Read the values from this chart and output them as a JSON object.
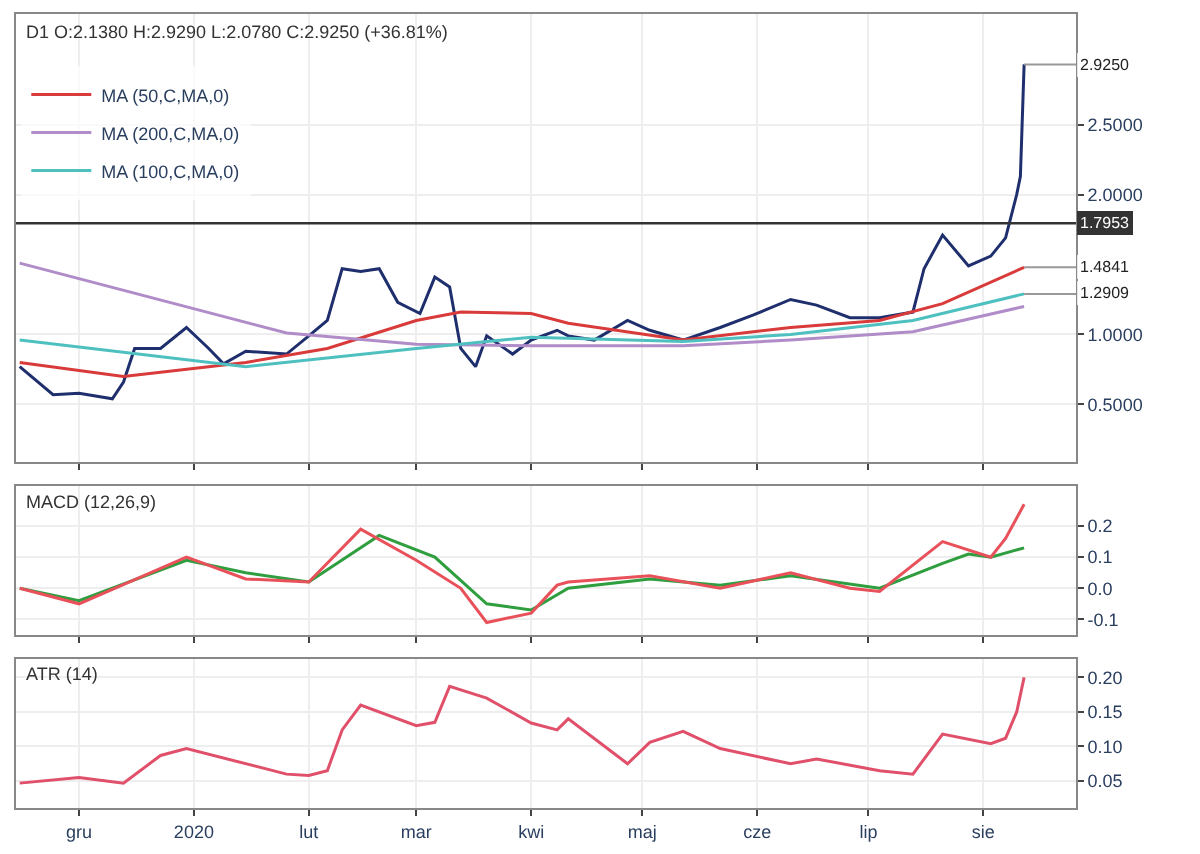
{
  "chart_data": [
    {
      "type": "line",
      "title": "D1 O:2.1380 H:2.9290 L:2.0780 C:2.9250 (+36.81%)",
      "legend": "top left",
      "grid": true,
      "tick_labels": "y",
      "xlim": [
        "2019-11-14",
        "2020-08-26"
      ],
      "xticks": [
        {
          "value": "2019-12-01",
          "label": null
        },
        {
          "value": "2020-01-01",
          "label": null
        },
        {
          "value": "2020-02-01",
          "label": null
        },
        {
          "value": "2020-03-01",
          "label": null
        },
        {
          "value": "2020-04-01",
          "label": null
        },
        {
          "value": "2020-05-01",
          "label": null
        },
        {
          "value": "2020-06-01",
          "label": null
        },
        {
          "value": "2020-07-01",
          "label": null
        },
        {
          "value": "2020-08-01",
          "label": null
        }
      ],
      "ylim": [
        0.09,
        3.29
      ],
      "yticks": [
        {
          "value": 0.5,
          "label": "0.5000"
        },
        {
          "value": 1.0,
          "label": "1.0000"
        },
        {
          "value": 2.0,
          "label": "2.0000"
        },
        {
          "value": 2.5,
          "label": "2.5000"
        }
      ],
      "ref_lines": [
        {
          "axis": "y",
          "value": 1.7953,
          "label": "1.7953",
          "color": "#333333"
        }
      ],
      "annotations": [
        {
          "text": "2.9250",
          "x": "2020-08-12",
          "y": 2.93
        },
        {
          "text": "1.4841",
          "x": "2020-08-12",
          "y": 1.48
        },
        {
          "text": "1.2909",
          "x": "2020-08-12",
          "y": 1.29
        }
      ],
      "series": [
        {
          "color": "#1f2f6e",
          "x": [
            "2019-11-15",
            "2019-11-24",
            "2019-12-01",
            "2019-12-10",
            "2019-12-13",
            "2019-12-16",
            "2019-12-23",
            "2019-12-30",
            "2020-01-05",
            "2020-01-09",
            "2020-01-15",
            "2020-01-26",
            "2020-02-01",
            "2020-02-06",
            "2020-02-10",
            "2020-02-15",
            "2020-02-20",
            "2020-02-25",
            "2020-03-02",
            "2020-03-06",
            "2020-03-10",
            "2020-03-13",
            "2020-03-17",
            "2020-03-20",
            "2020-03-27",
            "2020-04-01",
            "2020-04-08",
            "2020-04-11",
            "2020-04-18",
            "2020-04-27",
            "2020-05-03",
            "2020-05-12",
            "2020-05-22",
            "2020-05-31",
            "2020-06-10",
            "2020-06-17",
            "2020-06-26",
            "2020-07-04",
            "2020-07-13",
            "2020-07-16",
            "2020-07-21",
            "2020-07-28",
            "2020-08-03",
            "2020-08-07",
            "2020-08-10",
            "2020-08-11",
            "2020-08-12"
          ],
          "values": [
            0.77,
            0.57,
            0.58,
            0.54,
            0.66,
            0.9,
            0.9,
            1.05,
            0.9,
            0.79,
            0.88,
            0.86,
            0.99,
            1.1,
            1.47,
            1.45,
            1.47,
            1.23,
            1.15,
            1.41,
            1.34,
            0.9,
            0.77,
            0.99,
            0.86,
            0.96,
            1.03,
            0.99,
            0.96,
            1.1,
            1.03,
            0.96,
            1.05,
            1.14,
            1.25,
            1.21,
            1.12,
            1.12,
            1.16,
            1.47,
            1.71,
            1.49,
            1.56,
            1.69,
            2.0,
            2.13,
            2.93
          ]
        },
        {
          "name": "MA (50,C,MA,0)",
          "color": "#d93a3a",
          "x": [
            "2019-11-15",
            "2019-12-13",
            "2020-01-15",
            "2020-02-06",
            "2020-03-01",
            "2020-03-13",
            "2020-04-01",
            "2020-04-11",
            "2020-05-12",
            "2020-06-10",
            "2020-07-04",
            "2020-07-21",
            "2020-08-12"
          ],
          "values": [
            0.8,
            0.7,
            0.8,
            0.9,
            1.1,
            1.16,
            1.15,
            1.08,
            0.96,
            1.05,
            1.1,
            1.22,
            1.48
          ]
        },
        {
          "name": "MA (200,C,MA,0)",
          "color": "#b08cc8",
          "x": [
            "2019-11-15",
            "2020-01-26",
            "2020-03-01",
            "2020-04-01",
            "2020-05-12",
            "2020-06-10",
            "2020-07-13",
            "2020-08-12"
          ],
          "values": [
            1.51,
            1.01,
            0.93,
            0.92,
            0.92,
            0.96,
            1.02,
            1.2
          ]
        },
        {
          "name": "MA (100,C,MA,0)",
          "color": "#4fc0c0",
          "x": [
            "2019-11-15",
            "2020-01-15",
            "2020-03-01",
            "2020-04-01",
            "2020-05-12",
            "2020-06-10",
            "2020-07-13",
            "2020-08-12"
          ],
          "values": [
            0.96,
            0.77,
            0.9,
            0.98,
            0.95,
            1.0,
            1.1,
            1.29
          ]
        }
      ]
    },
    {
      "type": "line",
      "title": "MACD (12,26,9)",
      "grid": true,
      "tick_labels": "y",
      "xlim": [
        "2019-11-14",
        "2020-08-26"
      ],
      "xticks": [
        {
          "value": "2019-12-01",
          "label": null
        },
        {
          "value": "2020-01-01",
          "label": null
        },
        {
          "value": "2020-02-01",
          "label": null
        },
        {
          "value": "2020-03-01",
          "label": null
        },
        {
          "value": "2020-04-01",
          "label": null
        },
        {
          "value": "2020-05-01",
          "label": null
        },
        {
          "value": "2020-06-01",
          "label": null
        },
        {
          "value": "2020-07-01",
          "label": null
        },
        {
          "value": "2020-08-01",
          "label": null
        }
      ],
      "ylim": [
        -0.15,
        0.33
      ],
      "yticks": [
        {
          "value": -0.1,
          "label": "-0.1"
        },
        {
          "value": 0.0,
          "label": "0.0"
        },
        {
          "value": 0.1,
          "label": "0.1"
        },
        {
          "value": 0.2,
          "label": "0.2"
        }
      ],
      "series": [
        {
          "color": "#2e9e3e",
          "x": [
            "2019-11-15",
            "2019-12-01",
            "2019-12-30",
            "2020-01-15",
            "2020-02-01",
            "2020-02-20",
            "2020-03-06",
            "2020-03-20",
            "2020-04-01",
            "2020-04-11",
            "2020-05-03",
            "2020-05-22",
            "2020-06-10",
            "2020-07-04",
            "2020-07-21",
            "2020-07-28",
            "2020-08-03",
            "2020-08-12"
          ],
          "values": [
            0.0,
            -0.04,
            0.09,
            0.05,
            0.02,
            0.17,
            0.1,
            -0.05,
            -0.07,
            0.0,
            0.03,
            0.01,
            0.04,
            0.0,
            0.08,
            0.11,
            0.1,
            0.13
          ]
        },
        {
          "color": "#e8505a",
          "x": [
            "2019-11-15",
            "2019-12-01",
            "2019-12-30",
            "2020-01-15",
            "2020-02-01",
            "2020-02-15",
            "2020-03-01",
            "2020-03-13",
            "2020-03-20",
            "2020-04-01",
            "2020-04-08",
            "2020-04-11",
            "2020-05-03",
            "2020-05-22",
            "2020-06-10",
            "2020-06-26",
            "2020-07-04",
            "2020-07-21",
            "2020-08-03",
            "2020-08-07",
            "2020-08-12"
          ],
          "values": [
            0.0,
            -0.05,
            0.1,
            0.03,
            0.02,
            0.19,
            0.09,
            0.0,
            -0.11,
            -0.08,
            0.01,
            0.02,
            0.04,
            0.0,
            0.05,
            0.0,
            -0.01,
            0.15,
            0.1,
            0.16,
            0.27
          ]
        }
      ]
    },
    {
      "type": "line",
      "title": "ATR (14)",
      "grid": true,
      "xlim": [
        "2019-11-14",
        "2020-08-26"
      ],
      "xticks": [
        {
          "value": "2019-12-01",
          "label": "gru"
        },
        {
          "value": "2020-01-01",
          "label": "2020"
        },
        {
          "value": "2020-02-01",
          "label": "lut"
        },
        {
          "value": "2020-03-01",
          "label": "mar"
        },
        {
          "value": "2020-04-01",
          "label": "kwi"
        },
        {
          "value": "2020-05-01",
          "label": "maj"
        },
        {
          "value": "2020-06-01",
          "label": "cze"
        },
        {
          "value": "2020-07-01",
          "label": "lip"
        },
        {
          "value": "2020-08-01",
          "label": "sie"
        }
      ],
      "ylim": [
        0.011,
        0.227
      ],
      "yticks": [
        {
          "value": 0.05,
          "label": "0.05"
        },
        {
          "value": 0.1,
          "label": "0.10"
        },
        {
          "value": 0.15,
          "label": "0.15"
        },
        {
          "value": 0.2,
          "label": "0.20"
        }
      ],
      "series": [
        {
          "color": "#e0506a",
          "x": [
            "2019-11-15",
            "2019-12-01",
            "2019-12-13",
            "2019-12-23",
            "2019-12-30",
            "2020-01-26",
            "2020-02-01",
            "2020-02-06",
            "2020-02-10",
            "2020-02-15",
            "2020-03-01",
            "2020-03-06",
            "2020-03-10",
            "2020-03-20",
            "2020-04-01",
            "2020-04-08",
            "2020-04-11",
            "2020-04-27",
            "2020-05-03",
            "2020-05-12",
            "2020-05-22",
            "2020-06-10",
            "2020-06-17",
            "2020-07-04",
            "2020-07-13",
            "2020-07-21",
            "2020-08-03",
            "2020-08-07",
            "2020-08-10",
            "2020-08-12"
          ],
          "values": [
            0.047,
            0.055,
            0.047,
            0.087,
            0.097,
            0.06,
            0.058,
            0.065,
            0.124,
            0.16,
            0.13,
            0.135,
            0.187,
            0.17,
            0.134,
            0.124,
            0.14,
            0.075,
            0.106,
            0.122,
            0.097,
            0.075,
            0.082,
            0.065,
            0.06,
            0.118,
            0.104,
            0.112,
            0.15,
            0.2
          ]
        }
      ]
    }
  ]
}
